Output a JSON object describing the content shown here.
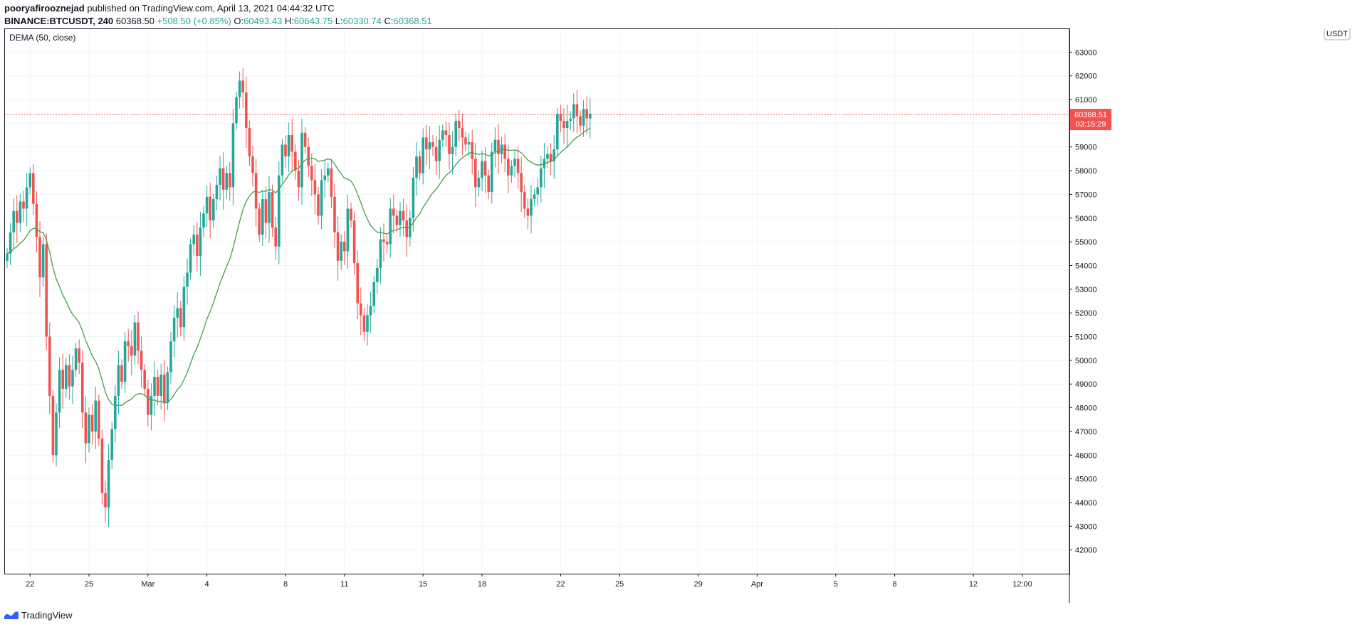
{
  "header": {
    "author": "pooryafirooznejad",
    "published_text": "published on TradingView.com, April 13, 2021 04:44:32 UTC",
    "symbol": "BINANCE:BTCUSDT, 240",
    "last": "60368.50",
    "change": "+508.50 (+0.85%)",
    "o_label": "O:",
    "o_value": "60493.43",
    "h_label": "H:",
    "h_value": "60643.75",
    "l_label": "L:",
    "l_value": "60330.74",
    "c_label": "C:",
    "c_value": "60368.51"
  },
  "indicator": {
    "label": "DEMA (50, close)"
  },
  "currency_badge": "USDT",
  "price_tag": {
    "price": "60368.51",
    "countdown": "03:15:29"
  },
  "footer": {
    "brand": "TradingView"
  },
  "colors": {
    "up": "#26a69a",
    "down": "#ef5350",
    "dema": "#43a047",
    "grid": "#f0f3fa",
    "axis": "#131722",
    "tag": "#ef5350"
  },
  "chart_data": {
    "type": "candlestick",
    "ylim": [
      41000,
      64000
    ],
    "y_ticks": [
      42000,
      43000,
      44000,
      45000,
      46000,
      47000,
      48000,
      49000,
      50000,
      51000,
      52000,
      53000,
      54000,
      55000,
      56000,
      57000,
      58000,
      59000,
      60000,
      61000,
      62000,
      63000
    ],
    "x_ticks": [
      {
        "label": "22",
        "i": 7
      },
      {
        "label": "25",
        "i": 25
      },
      {
        "label": "Mar",
        "i": 43
      },
      {
        "label": "4",
        "i": 61
      },
      {
        "label": "8",
        "i": 85
      },
      {
        "label": "11",
        "i": 103
      },
      {
        "label": "15",
        "i": 127
      },
      {
        "label": "18",
        "i": 145
      },
      {
        "label": "22",
        "i": 169
      },
      {
        "label": "25",
        "i": 187
      },
      {
        "label": "29",
        "i": 211
      },
      {
        "label": "Apr",
        "i": 229
      },
      {
        "label": "5",
        "i": 253
      },
      {
        "label": "8",
        "i": 271
      },
      {
        "label": "12",
        "i": 295
      },
      {
        "label": "12:00",
        "i": 310
      }
    ],
    "last_price": 60368.51,
    "legend": "top-left",
    "grid": true,
    "closes": [
      54500,
      55400,
      56300,
      55800,
      56700,
      56400,
      57300,
      57900,
      56600,
      55200,
      53500,
      54900,
      51000,
      48500,
      46000,
      47800,
      49600,
      48800,
      49800,
      48900,
      49600,
      50500,
      49900,
      47800,
      46500,
      47700,
      47000,
      48300,
      46700,
      44400,
      43800,
      45800,
      47100,
      48500,
      49800,
      49100,
      50800,
      50600,
      50200,
      51600,
      50400,
      49600,
      48800,
      47700,
      48500,
      49300,
      48500,
      49400,
      48200,
      49500,
      50800,
      51800,
      52200,
      51400,
      53100,
      53700,
      54900,
      55300,
      54400,
      55600,
      56200,
      56900,
      55900,
      56800,
      57400,
      58100,
      57200,
      57900,
      57300,
      60000,
      61100,
      61800,
      61300,
      59800,
      58600,
      57900,
      56400,
      55300,
      56800,
      55800,
      57100,
      55600,
      54800,
      57800,
      59100,
      58600,
      59500,
      58800,
      58000,
      57300,
      59600,
      59000,
      58200,
      57600,
      57000,
      56100,
      57600,
      57800,
      58100,
      56900,
      55400,
      54200,
      55000,
      54600,
      56400,
      55900,
      54100,
      52400,
      51900,
      51200,
      51900,
      52300,
      53300,
      53900,
      55100,
      55000,
      54900,
      56400,
      56100,
      55700,
      56300,
      55900,
      55200,
      56000,
      57700,
      58600,
      57900,
      59400,
      58900,
      59200,
      59000,
      58400,
      59300,
      59700,
      59500,
      58700,
      59000,
      60100,
      59800,
      59400,
      59100,
      59200,
      58500,
      57300,
      57700,
      58400,
      57800,
      57100,
      58800,
      59300,
      58700,
      59100,
      58500,
      57800,
      58200,
      58500,
      57900,
      57100,
      56400,
      56100,
      56800,
      57000,
      57300,
      58100,
      58500,
      58700,
      58400,
      58900,
      60400,
      60100,
      59800,
      60100,
      60200,
      60800,
      60300,
      59900,
      60600,
      60200,
      60400
    ]
  }
}
